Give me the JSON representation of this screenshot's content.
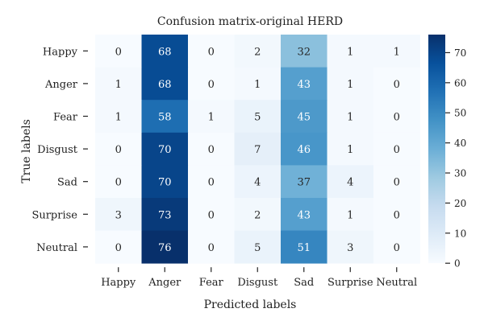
{
  "chart_data": {
    "type": "heatmap",
    "title": "Confusion matrix-original HERD",
    "xlabel": "Predicted labels",
    "ylabel": "True labels",
    "x_categories": [
      "Happy",
      "Anger",
      "Fear",
      "Disgust",
      "Sad",
      "Surprise",
      "Neutral"
    ],
    "y_categories": [
      "Happy",
      "Anger",
      "Fear",
      "Disgust",
      "Sad",
      "Surprise",
      "Neutral"
    ],
    "values": [
      [
        0,
        68,
        0,
        2,
        32,
        1,
        1
      ],
      [
        1,
        68,
        0,
        1,
        43,
        1,
        0
      ],
      [
        1,
        58,
        1,
        5,
        45,
        1,
        0
      ],
      [
        0,
        70,
        0,
        7,
        46,
        1,
        0
      ],
      [
        0,
        70,
        0,
        4,
        37,
        4,
        0
      ],
      [
        3,
        73,
        0,
        2,
        43,
        1,
        0
      ],
      [
        0,
        76,
        0,
        5,
        51,
        3,
        0
      ]
    ],
    "colorbar": {
      "min": 0,
      "max": 76,
      "ticks": [
        0,
        10,
        20,
        30,
        40,
        50,
        60,
        70
      ]
    },
    "colormap": "Blues",
    "colors": {
      "low": "#f7fbff",
      "high": "#08306b"
    }
  }
}
